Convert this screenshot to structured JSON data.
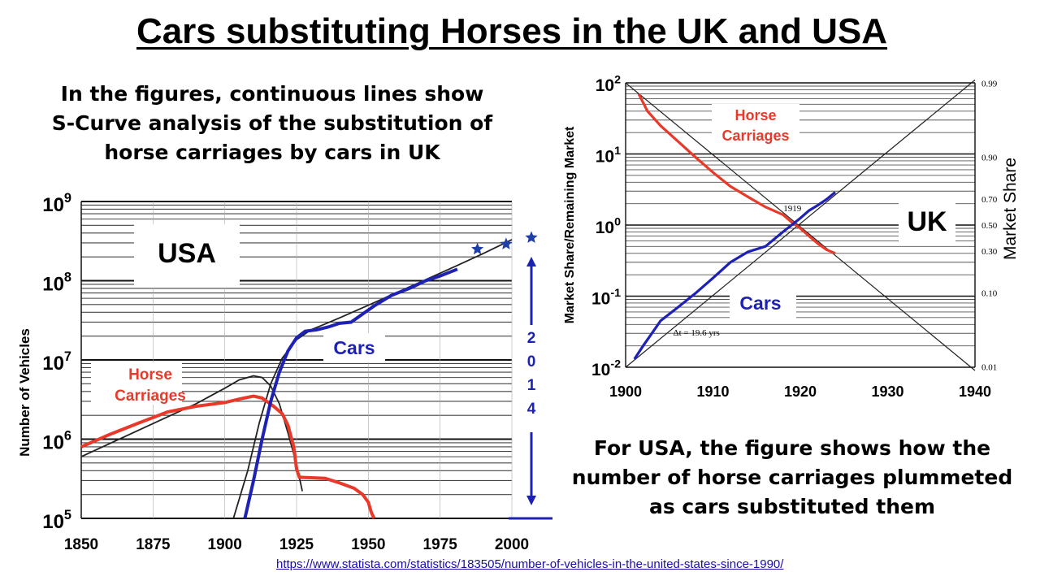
{
  "title": "Cars substituting Horses in the UK and USA",
  "caption_left": "In the figures, continuous lines show S-Curve analysis of the substitution of horse carriages by cars in UK",
  "caption_right": "For USA, the figure shows how the number of horse carriages plummeted as cars substituted them",
  "source_url": "https://www.statista.com/statistics/183505/number-of-vehicles-in-the-united-states-since-1990/",
  "colors": {
    "cars": "#1e22b4",
    "horses": "#e8392a",
    "fit": "#222222",
    "grid": "#444444",
    "star": "#1e3ea8"
  },
  "chart_data": [
    {
      "type": "line",
      "name": "usa",
      "title": "USA",
      "ylabel": "Number of Vehicles",
      "xlabel": "",
      "xlim": [
        1850,
        2000
      ],
      "ylim_log10": [
        5,
        9
      ],
      "x_ticks": [
        "1850",
        "1875",
        "1900",
        "1925",
        "1950",
        "1975",
        "2000"
      ],
      "y_ticks": [
        {
          "base": "10",
          "exp": "5"
        },
        {
          "base": "10",
          "exp": "6"
        },
        {
          "base": "10",
          "exp": "7"
        },
        {
          "base": "10",
          "exp": "8"
        },
        {
          "base": "10",
          "exp": "9"
        }
      ],
      "series": [
        {
          "name": "Horse Carriages",
          "label_lines": [
            "Horse",
            "Carriages"
          ],
          "points": [
            [
              1850,
              800000.0
            ],
            [
              1860,
              1150000.0
            ],
            [
              1870,
              1600000.0
            ],
            [
              1880,
              2200000.0
            ],
            [
              1890,
              2600000.0
            ],
            [
              1900,
              2900000.0
            ],
            [
              1905,
              3200000.0
            ],
            [
              1910,
              3500000.0
            ],
            [
              1913,
              3300000.0
            ],
            [
              1917,
              2600000.0
            ],
            [
              1920,
              2100000.0
            ],
            [
              1922,
              1500000.0
            ],
            [
              1924,
              800000.0
            ],
            [
              1925,
              420000.0
            ],
            [
              1926,
              330000.0
            ],
            [
              1935,
              320000.0
            ],
            [
              1940,
              280000.0
            ],
            [
              1945,
              240000.0
            ],
            [
              1948,
              200000.0
            ],
            [
              1950,
              160000.0
            ],
            [
              1951,
              120000.0
            ],
            [
              1952,
              100000.0
            ]
          ]
        },
        {
          "name": "Cars",
          "label_lines": [
            "Cars"
          ],
          "points": [
            [
              1907,
              100000.0
            ],
            [
              1910,
              300000.0
            ],
            [
              1913,
              1000000.0
            ],
            [
              1916,
              3000000.0
            ],
            [
              1919,
              7000000.0
            ],
            [
              1922,
              13000000.0
            ],
            [
              1925,
              19000000.0
            ],
            [
              1928,
              23000000.0
            ],
            [
              1932,
              24000000.0
            ],
            [
              1936,
              26000000.0
            ],
            [
              1940,
              29000000.0
            ],
            [
              1944,
              30000000.0
            ],
            [
              1948,
              38000000.0
            ],
            [
              1952,
              48000000.0
            ],
            [
              1958,
              65000000.0
            ],
            [
              1965,
              82000000.0
            ],
            [
              1970,
              100000000.0
            ],
            [
              1975,
              115000000.0
            ],
            [
              1981,
              140000000.0
            ]
          ]
        },
        {
          "name": "Horse S-curve fit",
          "points": [
            [
              1850,
              600000.0
            ],
            [
              1870,
              1300000.0
            ],
            [
              1890,
              2800000.0
            ],
            [
              1900,
              4400000.0
            ],
            [
              1905,
              5600000.0
            ],
            [
              1910,
              6300000.0
            ],
            [
              1913,
              6000000.0
            ],
            [
              1916,
              4700000.0
            ],
            [
              1919,
              2800000.0
            ],
            [
              1922,
              1200000.0
            ],
            [
              1925,
              480000.0
            ],
            [
              1927,
              220000.0
            ]
          ]
        },
        {
          "name": "Car S-curve fit",
          "points": [
            [
              1903,
              100000.0
            ],
            [
              1908,
              400000.0
            ],
            [
              1912,
              1600000.0
            ],
            [
              1916,
              5000000.0
            ],
            [
              1920,
              10500000.0
            ],
            [
              1925,
              18000000.0
            ],
            [
              1930,
              24000000.0
            ],
            [
              1935,
              28500000.0
            ],
            [
              1940,
              34000000.0
            ],
            [
              1950,
              49000000.0
            ],
            [
              1960,
              71000000.0
            ],
            [
              1970,
              103000000.0
            ],
            [
              1980,
              150000000.0
            ],
            [
              1990,
              220000000.0
            ],
            [
              2000,
              330000000.0
            ]
          ]
        }
      ],
      "stars": [
        [
          1988,
          250000000.0
        ],
        [
          1998,
          290000000.0
        ],
        [
          2014,
          350000000.0
        ]
      ],
      "annotation_2014": [
        "2",
        "0",
        "1",
        "4"
      ]
    },
    {
      "type": "line",
      "name": "uk",
      "title": "UK",
      "ylabel": "Market Share/Remaining Market",
      "ylabel_right": "Market Share",
      "xlim": [
        1900,
        1940
      ],
      "ylim_log10": [
        -2,
        2
      ],
      "x_ticks": [
        "1900",
        "1910",
        "1920",
        "1930",
        "1940"
      ],
      "y_ticks": [
        {
          "base": "10",
          "exp": "-2"
        },
        {
          "base": "10",
          "exp": "-1"
        },
        {
          "base": "10",
          "exp": "0"
        },
        {
          "base": "10",
          "exp": "1"
        },
        {
          "base": "10",
          "exp": "2"
        }
      ],
      "right_ticks": [
        "0.99",
        "0.90",
        "0.70",
        "0.50",
        "0.30",
        "0.10",
        "0.01"
      ],
      "right_tick_values": [
        0.99,
        0.9,
        0.7,
        0.5,
        0.3,
        0.1,
        0.01
      ],
      "annotations": {
        "crossover": "1919",
        "delta_t": "Δt = 19.6 yrs"
      },
      "series": [
        {
          "name": "Horse Carriages",
          "label_lines": [
            "Horse",
            "Carriages"
          ],
          "points": [
            [
              1901.5,
              70
            ],
            [
              1902.5,
              40
            ],
            [
              1904,
              25
            ],
            [
              1906,
              15
            ],
            [
              1908,
              9
            ],
            [
              1910,
              5.5
            ],
            [
              1912,
              3.5
            ],
            [
              1914,
              2.5
            ],
            [
              1916,
              1.8
            ],
            [
              1918,
              1.4
            ],
            [
              1919,
              1.1
            ],
            [
              1920,
              0.9
            ],
            [
              1921,
              0.7
            ],
            [
              1922,
              0.55
            ],
            [
              1923,
              0.45
            ],
            [
              1924,
              0.4
            ]
          ]
        },
        {
          "name": "Cars",
          "label_lines": [
            "Cars"
          ],
          "points": [
            [
              1901,
              0.013
            ],
            [
              1902,
              0.02
            ],
            [
              1903,
              0.03
            ],
            [
              1904,
              0.045
            ],
            [
              1906,
              0.07
            ],
            [
              1908,
              0.11
            ],
            [
              1910,
              0.18
            ],
            [
              1912,
              0.3
            ],
            [
              1914,
              0.42
            ],
            [
              1916,
              0.5
            ],
            [
              1918,
              0.8
            ],
            [
              1919,
              1.0
            ],
            [
              1920,
              1.25
            ],
            [
              1921,
              1.6
            ],
            [
              1922,
              1.9
            ],
            [
              1923,
              2.3
            ],
            [
              1924,
              2.9
            ]
          ]
        },
        {
          "name": "Car fit",
          "points": [
            [
              1900,
              0.01
            ],
            [
              1940,
              110
            ]
          ]
        },
        {
          "name": "Horse fit",
          "points": [
            [
              1900,
              100
            ],
            [
              1940,
              0.009
            ]
          ]
        }
      ]
    }
  ]
}
